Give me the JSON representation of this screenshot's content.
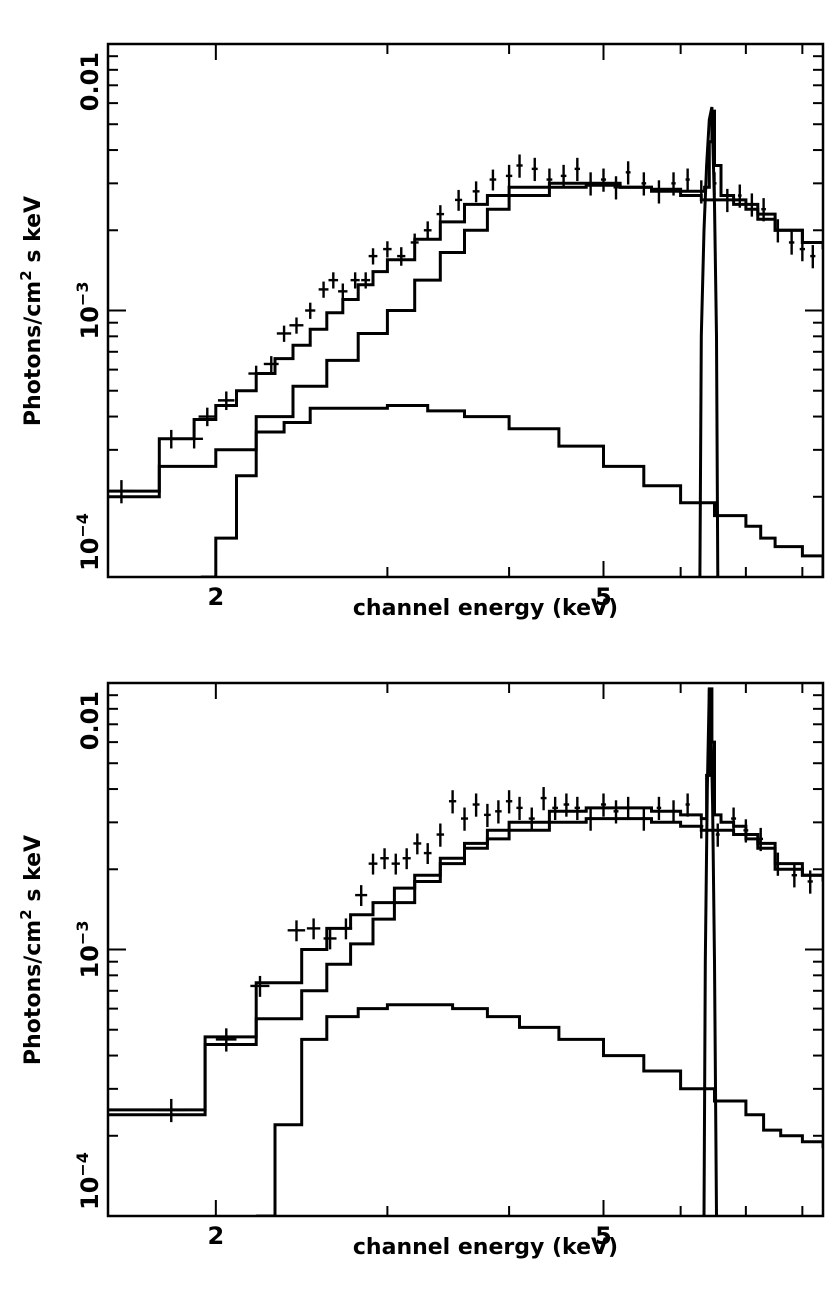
{
  "chart_data": [
    {
      "type": "line",
      "xlabel": "channel energy (keV)",
      "ylabel_main": "Photons/cm",
      "ylabel_sup": "2",
      "ylabel_tail": " s keV",
      "xscale": "log",
      "yscale": "log",
      "xlim": [
        1.55,
        8.4
      ],
      "ylim": [
        0.0001,
        0.01
      ],
      "x_tick_labels": [
        {
          "v": 2,
          "t": "2"
        },
        {
          "v": 5,
          "t": "5"
        }
      ],
      "y_tick_labels": [
        {
          "v": 0.0001,
          "base": "10",
          "exp": "−4"
        },
        {
          "v": 0.001,
          "base": "10",
          "exp": "−3"
        },
        {
          "v": 0.01,
          "base": "0.01",
          "exp": ""
        }
      ],
      "series": [
        {
          "role": "total_model",
          "x": [
            1.55,
            1.75,
            1.9,
            2.0,
            2.1,
            2.2,
            2.3,
            2.4,
            2.5,
            2.6,
            2.7,
            2.8,
            2.9,
            3.0,
            3.2,
            3.4,
            3.6,
            3.8,
            4.0,
            4.4,
            4.8,
            5.2,
            5.6,
            6.0,
            6.2,
            6.35,
            6.42,
            6.46,
            6.5,
            6.6,
            6.8,
            7.0,
            7.2,
            7.5,
            8.0,
            8.4
          ],
          "y": [
            0.00021,
            0.00033,
            0.00039,
            0.00044,
            0.0005,
            0.00058,
            0.00066,
            0.00074,
            0.00085,
            0.00098,
            0.0011,
            0.00125,
            0.0014,
            0.00155,
            0.00185,
            0.00215,
            0.0025,
            0.0027,
            0.0029,
            0.003,
            0.003,
            0.0029,
            0.00285,
            0.0028,
            0.0028,
            0.0029,
            0.0043,
            0.0056,
            0.0035,
            0.0027,
            0.0026,
            0.0025,
            0.0023,
            0.002,
            0.0018,
            0.0017
          ]
        },
        {
          "role": "continuum_model",
          "x": [
            1.55,
            1.75,
            2.0,
            2.2,
            2.4,
            2.6,
            2.8,
            3.0,
            3.2,
            3.4,
            3.6,
            3.8,
            4.0,
            4.4,
            4.8,
            5.2,
            5.6,
            6.0,
            6.3,
            6.6,
            6.8,
            7.0,
            7.2,
            7.5,
            8.0,
            8.4
          ],
          "y": [
            0.0002,
            0.00026,
            0.0003,
            0.0004,
            0.00052,
            0.00065,
            0.00082,
            0.001,
            0.0013,
            0.00165,
            0.002,
            0.0024,
            0.0027,
            0.0029,
            0.00295,
            0.0029,
            0.0028,
            0.0027,
            0.0026,
            0.0026,
            0.0025,
            0.0024,
            0.0022,
            0.002,
            0.0018,
            0.0017
          ]
        },
        {
          "role": "soft_component",
          "x": [
            1.93,
            2.0,
            2.1,
            2.2,
            2.35,
            2.5,
            2.75,
            3.0,
            3.3,
            3.6,
            4.0,
            4.5,
            5.0,
            5.5,
            6.0,
            6.5,
            7.0,
            7.25,
            7.5,
            8.0,
            8.4
          ],
          "y": [
            0.0001,
            0.00014,
            0.00024,
            0.00035,
            0.00038,
            0.00043,
            0.00043,
            0.00044,
            0.00042,
            0.0004,
            0.00036,
            0.00031,
            0.00026,
            0.00022,
            0.00019,
            0.00017,
            0.000155,
            0.00014,
            0.00013,
            0.00012,
            0.0001
          ]
        },
        {
          "role": "iron_line",
          "x": [
            6.28,
            6.3,
            6.34,
            6.38,
            6.42,
            6.46,
            6.5,
            6.53,
            6.55
          ],
          "y": [
            0.0001,
            0.0008,
            0.002,
            0.0035,
            0.0052,
            0.0058,
            0.0025,
            0.0008,
            0.0001
          ]
        }
      ],
      "points": {
        "x": [
          1.6,
          1.8,
          1.9,
          1.96,
          2.05,
          2.2,
          2.28,
          2.35,
          2.42,
          2.5,
          2.58,
          2.64,
          2.7,
          2.78,
          2.85,
          2.9,
          3.0,
          3.1,
          3.2,
          3.3,
          3.4,
          3.55,
          3.7,
          3.85,
          4.0,
          4.1,
          4.25,
          4.4,
          4.55,
          4.7,
          4.85,
          5.0,
          5.15,
          5.3,
          5.5,
          5.7,
          5.9,
          6.1,
          6.3,
          6.5,
          6.7,
          6.9,
          7.1,
          7.3,
          7.55,
          7.8,
          8.0,
          8.2
        ],
        "y": [
          0.00021,
          0.00033,
          0.00033,
          0.0004,
          0.00046,
          0.00058,
          0.00063,
          0.00082,
          0.00088,
          0.001,
          0.0012,
          0.0013,
          0.00118,
          0.0013,
          0.0013,
          0.0016,
          0.0017,
          0.0016,
          0.0018,
          0.002,
          0.0023,
          0.0026,
          0.0028,
          0.0031,
          0.0032,
          0.0035,
          0.0034,
          0.0031,
          0.0032,
          0.0034,
          0.003,
          0.0031,
          0.0029,
          0.0033,
          0.003,
          0.0028,
          0.003,
          0.0031,
          0.0028,
          0.003,
          0.0026,
          0.0027,
          0.0025,
          0.0024,
          0.002,
          0.0018,
          0.0017,
          0.0016
        ],
        "xerr": [
          0.05,
          0.05,
          0.04,
          0.04,
          0.04,
          0.04,
          0.04,
          0.04,
          0.04,
          0.03,
          0.03,
          0.03,
          0.03,
          0.03,
          0.03,
          0.03,
          0.03,
          0.03,
          0.03,
          0.03,
          0.03,
          0.03,
          0.03,
          0.03,
          0.03,
          0.03,
          0.03,
          0.03,
          0.03,
          0.03,
          0.03,
          0.03,
          0.03,
          0.03,
          0.03,
          0.03,
          0.03,
          0.03,
          0.03,
          0.03,
          0.03,
          0.03,
          0.04,
          0.04,
          0.05,
          0.05,
          0.05,
          0.05
        ],
        "yerr_frac": [
          0.1,
          0.08,
          0.08,
          0.08,
          0.08,
          0.07,
          0.07,
          0.07,
          0.07,
          0.07,
          0.07,
          0.07,
          0.07,
          0.07,
          0.07,
          0.07,
          0.07,
          0.08,
          0.08,
          0.08,
          0.08,
          0.09,
          0.09,
          0.09,
          0.1,
          0.1,
          0.1,
          0.1,
          0.1,
          0.1,
          0.1,
          0.1,
          0.1,
          0.1,
          0.1,
          0.1,
          0.1,
          0.1,
          0.1,
          0.1,
          0.1,
          0.1,
          0.1,
          0.1,
          0.1,
          0.1,
          0.1,
          0.1
        ]
      }
    },
    {
      "type": "line",
      "xlabel": "channel energy (keV)",
      "ylabel_main": "Photons/cm",
      "ylabel_sup": "2",
      "ylabel_tail": " s keV",
      "xscale": "log",
      "yscale": "log",
      "xlim": [
        1.55,
        8.4
      ],
      "ylim": [
        0.0001,
        0.01
      ],
      "x_tick_labels": [
        {
          "v": 2,
          "t": "2"
        },
        {
          "v": 5,
          "t": "5"
        }
      ],
      "y_tick_labels": [
        {
          "v": 0.0001,
          "base": "10",
          "exp": "−4"
        },
        {
          "v": 0.001,
          "base": "10",
          "exp": "−3"
        },
        {
          "v": 0.01,
          "base": "0.01",
          "exp": ""
        }
      ],
      "series": [
        {
          "role": "total_model",
          "x": [
            1.55,
            1.95,
            2.2,
            2.45,
            2.6,
            2.75,
            2.9,
            3.05,
            3.2,
            3.4,
            3.6,
            3.8,
            4.0,
            4.4,
            4.8,
            5.2,
            5.6,
            6.0,
            6.3,
            6.38,
            6.42,
            6.46,
            6.5,
            6.6,
            6.8,
            7.0,
            7.2,
            7.5,
            8.0,
            8.4
          ],
          "y": [
            0.00025,
            0.00047,
            0.00075,
            0.001,
            0.0012,
            0.00135,
            0.0015,
            0.0017,
            0.0019,
            0.0022,
            0.0025,
            0.0028,
            0.003,
            0.0033,
            0.0034,
            0.0034,
            0.0033,
            0.0032,
            0.0031,
            0.0045,
            0.0095,
            0.006,
            0.0032,
            0.003,
            0.0029,
            0.0027,
            0.0025,
            0.0021,
            0.0019,
            0.0018
          ]
        },
        {
          "role": "continuum_model",
          "x": [
            1.55,
            1.95,
            2.2,
            2.45,
            2.6,
            2.75,
            2.9,
            3.05,
            3.2,
            3.4,
            3.6,
            3.8,
            4.0,
            4.4,
            4.8,
            5.2,
            5.6,
            6.0,
            6.3,
            6.6,
            6.8,
            7.0,
            7.2,
            7.5,
            8.0,
            8.4
          ],
          "y": [
            0.00024,
            0.00044,
            0.00055,
            0.0007,
            0.00088,
            0.00105,
            0.0013,
            0.0015,
            0.0018,
            0.0021,
            0.0024,
            0.0026,
            0.0028,
            0.003,
            0.0031,
            0.0031,
            0.003,
            0.0029,
            0.0028,
            0.0028,
            0.0027,
            0.0026,
            0.0024,
            0.002,
            0.0019,
            0.0018
          ]
        },
        {
          "role": "soft_component",
          "x": [
            2.2,
            2.3,
            2.45,
            2.6,
            2.8,
            3.0,
            3.2,
            3.5,
            3.8,
            4.1,
            4.5,
            5.0,
            5.5,
            6.0,
            6.5,
            7.0,
            7.3,
            7.6,
            8.0,
            8.4
          ],
          "y": [
            0.0001,
            0.00022,
            0.00046,
            0.00056,
            0.0006,
            0.00062,
            0.00062,
            0.0006,
            0.00056,
            0.00051,
            0.00046,
            0.0004,
            0.00035,
            0.0003,
            0.00027,
            0.00024,
            0.00021,
            0.0002,
            0.00019,
            0.00018
          ]
        },
        {
          "role": "iron_line",
          "x": [
            6.34,
            6.36,
            6.39,
            6.42,
            6.44,
            6.47,
            6.5,
            6.53
          ],
          "y": [
            0.0001,
            0.0009,
            0.004,
            0.0095,
            0.008,
            0.0035,
            0.0009,
            0.0001
          ]
        }
      ],
      "points": {
        "x": [
          1.8,
          2.05,
          2.22,
          2.42,
          2.52,
          2.62,
          2.72,
          2.82,
          2.9,
          2.98,
          3.06,
          3.14,
          3.22,
          3.3,
          3.4,
          3.5,
          3.6,
          3.7,
          3.8,
          3.9,
          4.0,
          4.1,
          4.22,
          4.34,
          4.46,
          4.58,
          4.7,
          4.85,
          5.0,
          5.15,
          5.3,
          5.5,
          5.7,
          5.9,
          6.1,
          6.3,
          6.55,
          6.8,
          7.0,
          7.25,
          7.55,
          7.85,
          8.15
        ],
        "y": [
          0.00025,
          0.00046,
          0.00073,
          0.00118,
          0.0012,
          0.0011,
          0.0012,
          0.0016,
          0.0021,
          0.0022,
          0.0021,
          0.0022,
          0.0025,
          0.0023,
          0.0027,
          0.0036,
          0.0031,
          0.0035,
          0.0032,
          0.0033,
          0.0036,
          0.0034,
          0.0031,
          0.0037,
          0.0034,
          0.0035,
          0.0034,
          0.0031,
          0.0035,
          0.0033,
          0.0034,
          0.0031,
          0.0034,
          0.0033,
          0.0035,
          0.0029,
          0.0027,
          0.0031,
          0.0028,
          0.0026,
          0.0021,
          0.0019,
          0.0018
        ],
        "xerr": [
          0.06,
          0.05,
          0.05,
          0.05,
          0.04,
          0.04,
          0.04,
          0.04,
          0.03,
          0.03,
          0.03,
          0.03,
          0.03,
          0.03,
          0.03,
          0.03,
          0.03,
          0.03,
          0.03,
          0.03,
          0.03,
          0.03,
          0.03,
          0.03,
          0.03,
          0.03,
          0.03,
          0.03,
          0.03,
          0.03,
          0.03,
          0.03,
          0.03,
          0.03,
          0.03,
          0.03,
          0.03,
          0.04,
          0.04,
          0.04,
          0.05,
          0.05,
          0.05
        ],
        "yerr_frac": [
          0.1,
          0.1,
          0.09,
          0.09,
          0.09,
          0.09,
          0.09,
          0.09,
          0.09,
          0.09,
          0.09,
          0.09,
          0.09,
          0.09,
          0.1,
          0.1,
          0.1,
          0.1,
          0.1,
          0.1,
          0.1,
          0.1,
          0.1,
          0.1,
          0.1,
          0.1,
          0.1,
          0.1,
          0.1,
          0.1,
          0.1,
          0.1,
          0.1,
          0.1,
          0.1,
          0.1,
          0.1,
          0.1,
          0.1,
          0.1,
          0.1,
          0.1,
          0.1
        ]
      }
    }
  ]
}
